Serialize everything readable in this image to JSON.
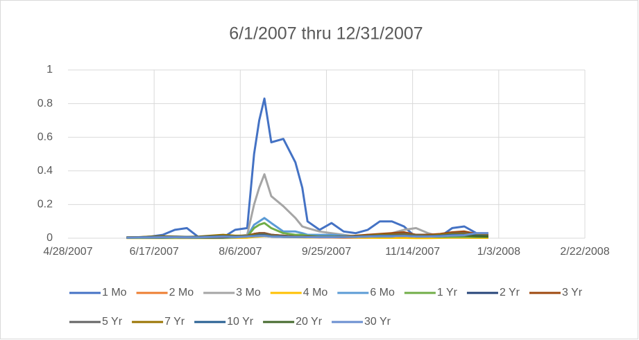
{
  "chart_data": {
    "type": "line",
    "title": "6/1/2007 thru 12/31/2007",
    "x": [
      "6/1/2007",
      "6/8/2007",
      "6/15/2007",
      "6/22/2007",
      "6/29/2007",
      "7/6/2007",
      "7/13/2007",
      "7/20/2007",
      "7/27/2007",
      "8/3/2007",
      "8/10/2007",
      "8/14/2007",
      "8/17/2007",
      "8/20/2007",
      "8/24/2007",
      "8/31/2007",
      "9/7/2007",
      "9/11/2007",
      "9/14/2007",
      "9/21/2007",
      "9/28/2007",
      "10/5/2007",
      "10/12/2007",
      "10/19/2007",
      "10/26/2007",
      "11/2/2007",
      "11/9/2007",
      "11/16/2007",
      "11/23/2007",
      "11/30/2007",
      "12/7/2007",
      "12/14/2007",
      "12/21/2007",
      "12/28/2007"
    ],
    "series": [
      {
        "name": "1 Mo",
        "color": "#4472c4",
        "values": [
          0.005,
          0.005,
          0.01,
          0.02,
          0.05,
          0.06,
          0.005,
          0.005,
          0.005,
          0.05,
          0.06,
          0.5,
          0.7,
          0.83,
          0.57,
          0.59,
          0.45,
          0.3,
          0.1,
          0.05,
          0.09,
          0.04,
          0.03,
          0.05,
          0.1,
          0.1,
          0.07,
          0.005,
          0.005,
          0.01,
          0.06,
          0.07,
          0.03,
          0.03
        ]
      },
      {
        "name": "2 Mo",
        "color": "#ed7d31",
        "values": [
          0.002,
          0.002,
          0.002,
          0.002,
          0.003,
          0.003,
          0.002,
          0.002,
          0.002,
          0.003,
          0.004,
          0.01,
          0.015,
          0.02,
          0.015,
          0.01,
          0.008,
          0.006,
          0.005,
          0.004,
          0.004,
          0.003,
          0.003,
          0.003,
          0.004,
          0.004,
          0.004,
          0.004,
          0.003,
          0.003,
          0.003,
          0.003,
          0.003,
          0.003
        ]
      },
      {
        "name": "3 Mo",
        "color": "#a5a5a5",
        "values": [
          0.002,
          0.002,
          0.003,
          0.003,
          0.005,
          0.005,
          0.002,
          0.002,
          0.002,
          0.01,
          0.02,
          0.2,
          0.3,
          0.38,
          0.25,
          0.19,
          0.12,
          0.07,
          0.06,
          0.04,
          0.03,
          0.02,
          0.01,
          0.02,
          0.02,
          0.03,
          0.05,
          0.06,
          0.03,
          0.01,
          0.02,
          0.02,
          0.01,
          0.01
        ]
      },
      {
        "name": "4 Mo",
        "color": "#ffc000",
        "values": [
          0.001,
          0.001,
          0.001,
          0.001,
          0.001,
          0.001,
          0.001,
          0.001,
          0.001,
          0.002,
          0.003,
          0.008,
          0.01,
          0.012,
          0.01,
          0.008,
          0.006,
          0.005,
          0.004,
          0.006,
          0.01,
          0.008,
          0.004,
          0.003,
          0.002,
          0.002,
          0.002,
          0.001,
          0.001,
          0.002,
          0.004,
          0.003,
          0.002,
          0.002
        ]
      },
      {
        "name": "6 Mo",
        "color": "#5b9bd5",
        "values": [
          0.002,
          0.002,
          0.002,
          0.002,
          0.003,
          0.003,
          0.002,
          0.002,
          0.002,
          0.005,
          0.01,
          0.08,
          0.1,
          0.12,
          0.09,
          0.04,
          0.04,
          0.03,
          0.02,
          0.02,
          0.02,
          0.015,
          0.01,
          0.01,
          0.01,
          0.01,
          0.02,
          0.02,
          0.015,
          0.01,
          0.01,
          0.01,
          0.01,
          0.01
        ]
      },
      {
        "name": "1 Yr",
        "color": "#70ad47",
        "values": [
          0.002,
          0.002,
          0.003,
          0.003,
          0.004,
          0.004,
          0.002,
          0.002,
          0.003,
          0.008,
          0.01,
          0.06,
          0.08,
          0.09,
          0.06,
          0.03,
          0.02,
          0.02,
          0.015,
          0.01,
          0.01,
          0.01,
          0.008,
          0.01,
          0.01,
          0.012,
          0.015,
          0.01,
          0.01,
          0.008,
          0.008,
          0.008,
          0.007,
          0.007
        ]
      },
      {
        "name": "2 Yr",
        "color": "#264478",
        "values": [
          0.004,
          0.004,
          0.005,
          0.005,
          0.006,
          0.005,
          0.004,
          0.004,
          0.005,
          0.01,
          0.015,
          0.025,
          0.03,
          0.03,
          0.02,
          0.015,
          0.01,
          0.01,
          0.01,
          0.008,
          0.008,
          0.008,
          0.01,
          0.015,
          0.02,
          0.02,
          0.025,
          0.02,
          0.02,
          0.02,
          0.03,
          0.03,
          0.02,
          0.02
        ]
      },
      {
        "name": "3 Yr",
        "color": "#9e480e",
        "values": [
          0.004,
          0.005,
          0.005,
          0.006,
          0.006,
          0.006,
          0.005,
          0.005,
          0.006,
          0.01,
          0.015,
          0.025,
          0.03,
          0.03,
          0.02,
          0.015,
          0.01,
          0.01,
          0.01,
          0.008,
          0.008,
          0.01,
          0.015,
          0.02,
          0.025,
          0.03,
          0.035,
          0.02,
          0.02,
          0.025,
          0.035,
          0.04,
          0.025,
          0.02
        ]
      },
      {
        "name": "5 Yr",
        "color": "#636363",
        "values": [
          0.004,
          0.005,
          0.006,
          0.006,
          0.006,
          0.005,
          0.005,
          0.006,
          0.008,
          0.01,
          0.012,
          0.02,
          0.025,
          0.025,
          0.018,
          0.012,
          0.01,
          0.01,
          0.008,
          0.008,
          0.008,
          0.01,
          0.012,
          0.015,
          0.02,
          0.022,
          0.025,
          0.018,
          0.015,
          0.02,
          0.028,
          0.03,
          0.02,
          0.015
        ]
      },
      {
        "name": "7 Yr",
        "color": "#997300",
        "values": [
          0.005,
          0.006,
          0.01,
          0.012,
          0.01,
          0.008,
          0.01,
          0.015,
          0.02,
          0.015,
          0.015,
          0.02,
          0.02,
          0.02,
          0.015,
          0.01,
          0.01,
          0.01,
          0.008,
          0.008,
          0.008,
          0.01,
          0.012,
          0.015,
          0.02,
          0.02,
          0.02,
          0.015,
          0.015,
          0.02,
          0.025,
          0.025,
          0.02,
          0.015
        ]
      },
      {
        "name": "10 Yr",
        "color": "#255e91",
        "values": [
          0.004,
          0.005,
          0.007,
          0.008,
          0.008,
          0.007,
          0.007,
          0.01,
          0.012,
          0.01,
          0.012,
          0.015,
          0.018,
          0.018,
          0.012,
          0.01,
          0.008,
          0.008,
          0.007,
          0.007,
          0.007,
          0.008,
          0.01,
          0.012,
          0.015,
          0.015,
          0.016,
          0.012,
          0.012,
          0.015,
          0.02,
          0.02,
          0.015,
          0.012
        ]
      },
      {
        "name": "20 Yr",
        "color": "#43682b",
        "values": [
          0.003,
          0.004,
          0.005,
          0.006,
          0.006,
          0.005,
          0.005,
          0.007,
          0.009,
          0.008,
          0.01,
          0.012,
          0.014,
          0.014,
          0.01,
          0.008,
          0.007,
          0.007,
          0.006,
          0.006,
          0.006,
          0.007,
          0.008,
          0.01,
          0.012,
          0.012,
          0.013,
          0.01,
          0.01,
          0.012,
          0.016,
          0.016,
          0.012,
          0.01
        ]
      },
      {
        "name": "30 Yr",
        "color": "#698ed0",
        "values": [
          0.003,
          0.004,
          0.005,
          0.006,
          0.006,
          0.005,
          0.005,
          0.007,
          0.009,
          0.008,
          0.01,
          0.012,
          0.014,
          0.014,
          0.01,
          0.008,
          0.007,
          0.007,
          0.006,
          0.006,
          0.006,
          0.007,
          0.008,
          0.01,
          0.012,
          0.012,
          0.013,
          0.01,
          0.01,
          0.012,
          0.016,
          0.018,
          0.03,
          0.03
        ]
      }
    ],
    "xlim": [
      "4/28/2007",
      "2/22/2008"
    ],
    "xticks": [
      "4/28/2007",
      "6/17/2007",
      "8/6/2007",
      "9/25/2007",
      "11/14/2007",
      "1/3/2008",
      "2/22/2008"
    ],
    "ylim": [
      0,
      1
    ],
    "yticks": [
      0,
      0.2,
      0.4,
      0.6,
      0.8,
      1
    ],
    "grid": true,
    "legend": "bottom"
  }
}
